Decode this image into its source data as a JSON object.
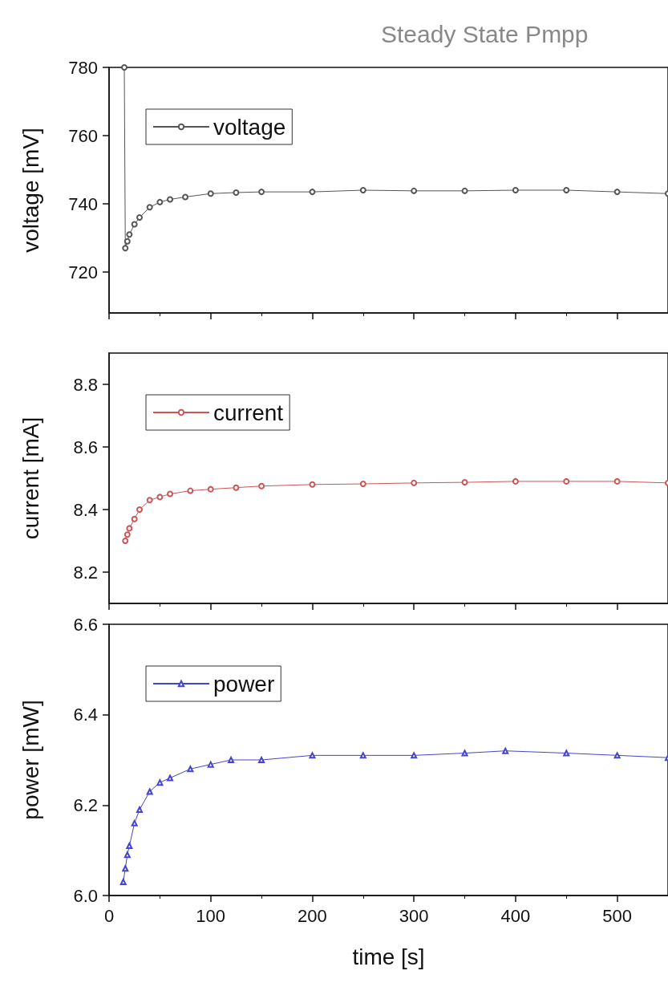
{
  "chart_data": [
    {
      "type": "line",
      "title": "Steady State Pmpp",
      "ylabel": "voltage [mV]",
      "xlim": [
        0,
        550
      ],
      "xticks": [
        0,
        100,
        200,
        300,
        400,
        500
      ],
      "ylim": [
        708,
        780
      ],
      "yticks": [
        720,
        740,
        760,
        780
      ],
      "legend": "top left",
      "grid": false,
      "tick_labels": "y",
      "series": [
        {
          "name": "voltage",
          "color": "#555555",
          "marker": "circle",
          "x": [
            15,
            16,
            18,
            20,
            25,
            30,
            40,
            50,
            60,
            75,
            100,
            125,
            150,
            200,
            250,
            300,
            350,
            400,
            450,
            500,
            550
          ],
          "values": [
            780,
            727,
            729,
            731,
            734,
            736,
            739,
            740.5,
            741.3,
            742,
            743,
            743.3,
            743.5,
            743.5,
            744,
            743.8,
            743.8,
            744,
            744,
            743.5,
            743
          ]
        }
      ]
    },
    {
      "type": "line",
      "ylabel": "current [mA]",
      "xlim": [
        0,
        550
      ],
      "xticks": [
        0,
        100,
        200,
        300,
        400,
        500
      ],
      "ylim": [
        8.1,
        8.9
      ],
      "yticks": [
        8.2,
        8.4,
        8.6,
        8.8
      ],
      "legend": "top left",
      "grid": false,
      "tick_labels": "y",
      "series": [
        {
          "name": "current",
          "color": "#cc5555",
          "marker": "circle",
          "x": [
            16,
            18,
            20,
            25,
            30,
            40,
            50,
            60,
            80,
            100,
            125,
            150,
            200,
            250,
            300,
            350,
            400,
            450,
            500,
            550
          ],
          "values": [
            8.3,
            8.32,
            8.34,
            8.37,
            8.4,
            8.43,
            8.44,
            8.45,
            8.46,
            8.465,
            8.47,
            8.475,
            8.48,
            8.482,
            8.485,
            8.487,
            8.49,
            8.49,
            8.49,
            8.485
          ]
        }
      ]
    },
    {
      "type": "line",
      "xlabel": "time [s]",
      "ylabel": "power [mW]",
      "xlim": [
        0,
        550
      ],
      "xticks": [
        0,
        100,
        200,
        300,
        400,
        500
      ],
      "ylim": [
        6.0,
        6.6
      ],
      "yticks": [
        {
          "value": 6,
          "label": "6.0"
        },
        6.2,
        6.4,
        6.6
      ],
      "legend": "top left",
      "grid": false,
      "series": [
        {
          "name": "power",
          "color": "#4444cc",
          "marker": "triangle",
          "x": [
            14,
            16,
            18,
            20,
            25,
            30,
            40,
            50,
            60,
            80,
            100,
            120,
            150,
            200,
            250,
            300,
            350,
            390,
            450,
            500,
            550
          ],
          "values": [
            6.03,
            6.06,
            6.09,
            6.11,
            6.16,
            6.19,
            6.23,
            6.25,
            6.26,
            6.28,
            6.29,
            6.3,
            6.3,
            6.31,
            6.31,
            6.31,
            6.315,
            6.32,
            6.315,
            6.31,
            6.305
          ]
        }
      ]
    }
  ]
}
